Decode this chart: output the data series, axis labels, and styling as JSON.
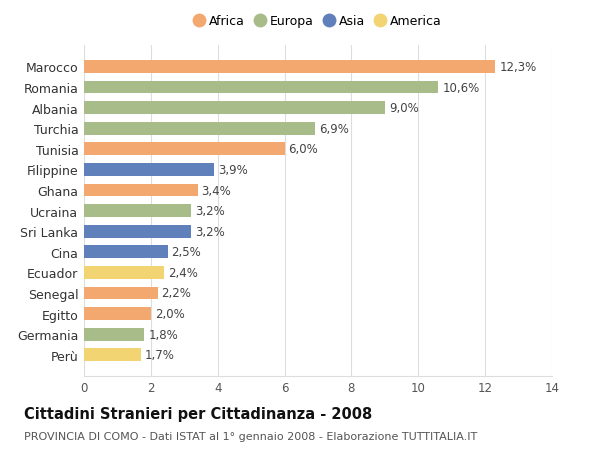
{
  "countries": [
    "Perù",
    "Germania",
    "Egitto",
    "Senegal",
    "Ecuador",
    "Cina",
    "Sri Lanka",
    "Ucraina",
    "Ghana",
    "Filippine",
    "Tunisia",
    "Turchia",
    "Albania",
    "Romania",
    "Marocco"
  ],
  "values": [
    1.7,
    1.8,
    2.0,
    2.2,
    2.4,
    2.5,
    3.2,
    3.2,
    3.4,
    3.9,
    6.0,
    6.9,
    9.0,
    10.6,
    12.3
  ],
  "continents": [
    "America",
    "Europa",
    "Africa",
    "Africa",
    "America",
    "Asia",
    "Asia",
    "Europa",
    "Africa",
    "Asia",
    "Africa",
    "Europa",
    "Europa",
    "Europa",
    "Africa"
  ],
  "colors": {
    "Africa": "#F2A86F",
    "Europa": "#A8BC8A",
    "Asia": "#6080BB",
    "America": "#F2D472"
  },
  "legend_order": [
    "Africa",
    "Europa",
    "Asia",
    "America"
  ],
  "title": "Cittadini Stranieri per Cittadinanza - 2008",
  "subtitle": "PROVINCIA DI COMO - Dati ISTAT al 1° gennaio 2008 - Elaborazione TUTTITALIA.IT",
  "xlim": [
    0,
    14
  ],
  "xticks": [
    0,
    2,
    4,
    6,
    8,
    10,
    12,
    14
  ],
  "bar_height": 0.62,
  "background_color": "#ffffff",
  "grid_color": "#dddddd",
  "value_label_fontsize": 8.5,
  "ytick_fontsize": 9,
  "xtick_fontsize": 8.5,
  "title_fontsize": 10.5,
  "subtitle_fontsize": 8,
  "legend_fontsize": 9
}
